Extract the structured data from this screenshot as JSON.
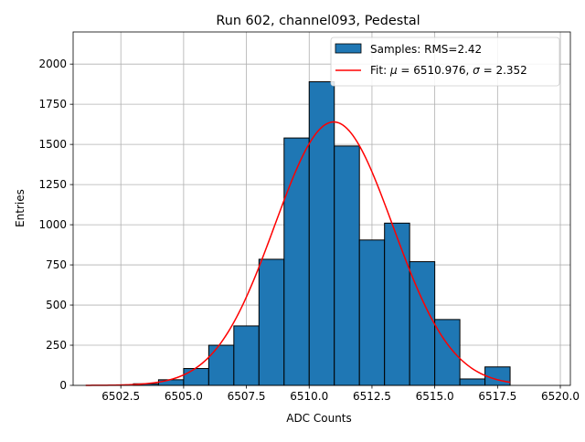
{
  "chart_data": {
    "type": "bar",
    "title": "Run 602, channel093, Pedestal",
    "xlabel": "ADC Counts",
    "ylabel": "Entries",
    "xlim": [
      6500.6,
      6520.4
    ],
    "ylim": [
      0,
      2200
    ],
    "xticks": [
      6502.5,
      6505.0,
      6507.5,
      6510.0,
      6512.5,
      6515.0,
      6517.5,
      6520.0
    ],
    "xtick_labels": [
      "6502.5",
      "6505.0",
      "6507.5",
      "6510.0",
      "6512.5",
      "6515.0",
      "6517.5",
      "6520.0"
    ],
    "yticks": [
      0,
      250,
      500,
      750,
      1000,
      1250,
      1500,
      1750,
      2000
    ],
    "ytick_labels": [
      "0",
      "250",
      "500",
      "750",
      "1000",
      "1250",
      "1500",
      "1750",
      "2000"
    ],
    "grid": true,
    "legend_position": "top-right",
    "histogram": {
      "name": "Samples: RMS=2.42",
      "color": "#1f77b4",
      "bins": [
        {
          "left": 6503,
          "right": 6504,
          "value": 10
        },
        {
          "left": 6504,
          "right": 6505,
          "value": 35
        },
        {
          "left": 6505,
          "right": 6506,
          "value": 105
        },
        {
          "left": 6506,
          "right": 6507,
          "value": 250
        },
        {
          "left": 6507,
          "right": 6508,
          "value": 370
        },
        {
          "left": 6508,
          "right": 6509,
          "value": 785
        },
        {
          "left": 6509,
          "right": 6510,
          "value": 1540
        },
        {
          "left": 6510,
          "right": 6511,
          "value": 1890
        },
        {
          "left": 6511,
          "right": 6512,
          "value": 1490
        },
        {
          "left": 6512,
          "right": 6513,
          "value": 905
        },
        {
          "left": 6513,
          "right": 6514,
          "value": 1010
        },
        {
          "left": 6514,
          "right": 6515,
          "value": 770
        },
        {
          "left": 6515,
          "right": 6516,
          "value": 410
        },
        {
          "left": 6516,
          "right": 6517,
          "value": 40
        },
        {
          "left": 6517,
          "right": 6518,
          "value": 115
        }
      ]
    },
    "fit": {
      "name": "Fit: μ = 6510.976, σ = 2.352",
      "legend_prefix": "Fit: ",
      "mu_symbol": "μ",
      "mu_text": " = 6510.976, ",
      "sigma_symbol": "σ",
      "sigma_text": " = 2.352",
      "color": "#ff0000",
      "mu": 6510.976,
      "sigma": 2.352,
      "amplitude": 1640,
      "x_range": [
        6501.1,
        6518.0
      ]
    }
  }
}
